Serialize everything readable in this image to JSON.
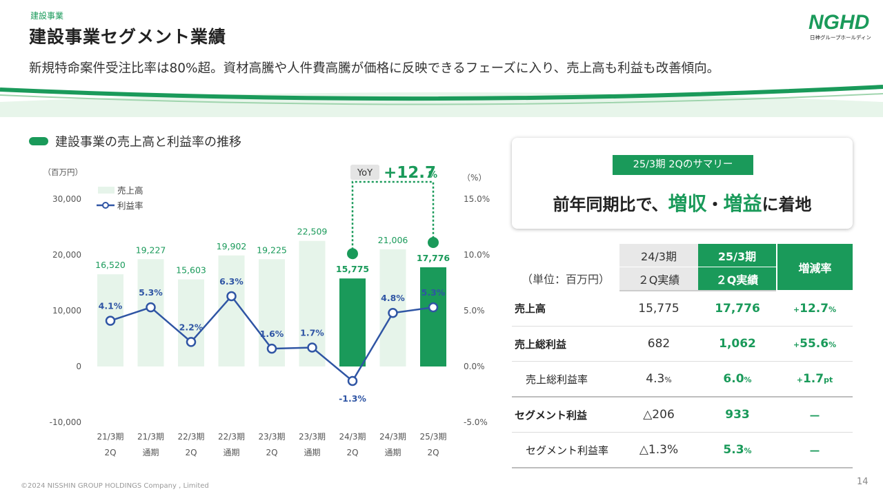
{
  "header": {
    "breadcrumb": "建設事業",
    "title": "建設事業セグメント業績",
    "subtitle": "新規特命案件受注比率は80%超。資材高騰や人件費高騰が価格に反映できるフェーズに入り、売上高も利益も改善傾向。"
  },
  "logo": {
    "text": "NGHD",
    "subtext": "日神グループホールディングス"
  },
  "chart_section": {
    "heading": "建設事業の売上高と利益率の推移"
  },
  "chart_data": {
    "type": "bar",
    "title": "建設事業の売上高と利益率の推移",
    "categories": [
      [
        "21/3期",
        "2Q"
      ],
      [
        "21/3期",
        "通期"
      ],
      [
        "22/3期",
        "2Q"
      ],
      [
        "22/3期",
        "通期"
      ],
      [
        "23/3期",
        "2Q"
      ],
      [
        "23/3期",
        "通期"
      ],
      [
        "24/3期",
        "2Q"
      ],
      [
        "24/3期",
        "通期"
      ],
      [
        "25/3期",
        "2Q"
      ]
    ],
    "series": [
      {
        "name": "売上高",
        "type": "bar",
        "axis": "left",
        "values": [
          16520,
          19227,
          15603,
          19902,
          19225,
          22509,
          15775,
          21006,
          17776
        ],
        "labels": [
          "16,520",
          "19,227",
          "15,603",
          "19,902",
          "19,225",
          "22,509",
          "15,775",
          "21,006",
          "17,776"
        ],
        "highlight": [
          6,
          8
        ]
      },
      {
        "name": "利益率",
        "type": "line",
        "axis": "right",
        "values": [
          4.1,
          5.3,
          2.2,
          6.3,
          1.6,
          1.7,
          -1.3,
          4.8,
          5.3
        ],
        "labels": [
          "4.1%",
          "5.3%",
          "2.2%",
          "6.3%",
          "1.6%",
          "1.7%",
          "-1.3%",
          "4.8%",
          "5.3%"
        ]
      }
    ],
    "y_left": {
      "unit": "（百万円）",
      "ylim": [
        -10000,
        30000
      ],
      "ticks": [
        30000,
        20000,
        10000,
        0,
        -10000
      ],
      "tick_labels": [
        "30,000",
        "20,000",
        "10,000",
        "0",
        "-10,000"
      ]
    },
    "y_right": {
      "unit": "（%）",
      "ylim": [
        -5,
        15
      ],
      "ticks": [
        15,
        10,
        5,
        0,
        -5
      ],
      "tick_labels": [
        "15.0%",
        "10.0%",
        "5.0%",
        "0.0%",
        "-5.0%"
      ]
    },
    "annotation": {
      "label": "YoY",
      "value": "+12.7",
      "unit": "%",
      "from": 6,
      "to": 8
    },
    "legend_placement": "top-left",
    "grid": false,
    "colors": {
      "bar": "#e6f4ea",
      "bar_highlight": "#1a9a5a",
      "line": "#2f55a4",
      "accent": "#1a9a5a"
    }
  },
  "summary": {
    "label": "25/3期 2Qのサマリー",
    "text_pre": "前年同期比で、",
    "hl1": "増収",
    "mid": "・",
    "hl2": "増益",
    "text_post": "に着地"
  },
  "table": {
    "unit": "（単位：百万円）",
    "col_prev_1": "24/3期",
    "col_prev_2": "２Q実績",
    "col_cur_1": "25/3期",
    "col_cur_2": "２Q実績",
    "col_change": "増減率",
    "rows": [
      {
        "label": "売上高",
        "prev": "15,775",
        "cur": "17,776",
        "chg": "12.7"
      },
      {
        "label": "売上総利益",
        "prev": "682",
        "cur": "1,062",
        "chg": "55.6"
      },
      {
        "label": "売上総利益率",
        "prev": "4.3",
        "cur": "6.0",
        "chg": "1.7"
      },
      {
        "label": "セグメント利益",
        "prev": "△206",
        "cur": "933",
        "chg": "－"
      },
      {
        "label": "セグメント利益率",
        "prev": "△1.3%",
        "cur": "5.3",
        "chg": "－"
      }
    ]
  },
  "footer": {
    "copyright": "©2024 NISSHIN GROUP HOLDINGS Company , Limited",
    "page_number": "14"
  }
}
